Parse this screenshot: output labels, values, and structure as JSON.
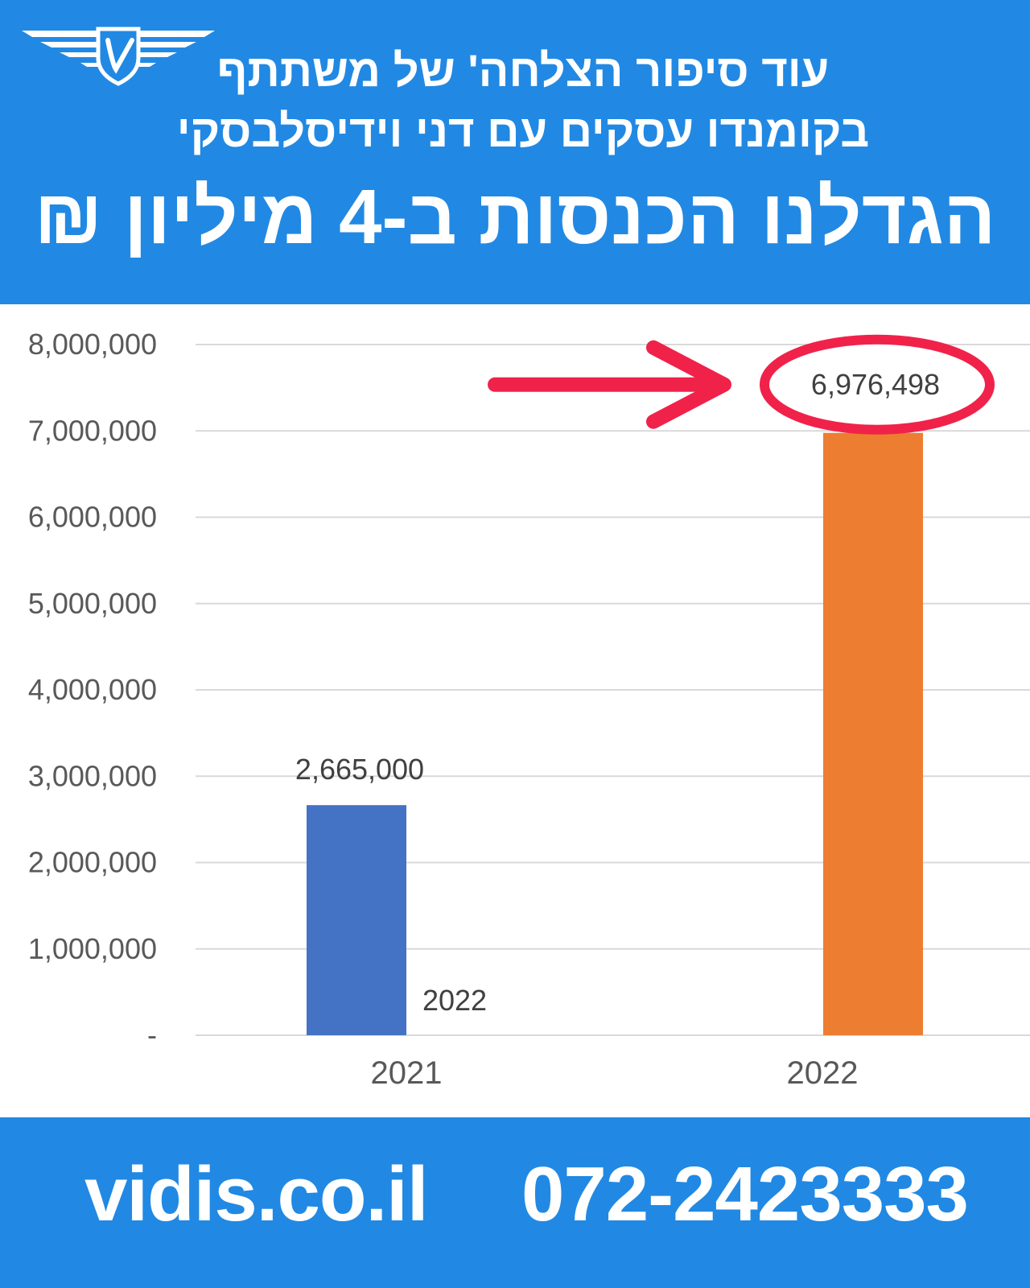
{
  "header": {
    "subtitle_line1": "עוד סיפור הצלחה' של משתתף",
    "subtitle_line2": "בקומנדו עסקים עם דני וידיסלבסקי",
    "headline": "הגדלנו הכנסות ב-4 מיליון ₪",
    "background_color": "#2189e3",
    "logo_icon": "winged-shield-logo"
  },
  "chart_data": {
    "type": "bar",
    "categories": [
      "2021",
      "2022"
    ],
    "values": [
      2665000,
      6976498
    ],
    "data_labels": [
      "2,665,000",
      "6,976,498"
    ],
    "bar_colors": [
      "#4472c4",
      "#ed7d31"
    ],
    "ylim": [
      0,
      8000000
    ],
    "y_ticks": [
      0,
      1000000,
      2000000,
      3000000,
      4000000,
      5000000,
      6000000,
      7000000,
      8000000
    ],
    "y_tick_labels": [
      "-",
      "1,000,000",
      "2,000,000",
      "3,000,000",
      "4,000,000",
      "5,000,000",
      "6,000,000",
      "7,000,000",
      "8,000,000"
    ],
    "grid": true,
    "annotations": [
      {
        "text": "2022",
        "description": "stray label beside the 2021 bar"
      },
      {
        "text": "6,976,498",
        "description": "red circle and red arrow highlighting the 2022 value",
        "color": "#f0224a"
      }
    ]
  },
  "footer": {
    "website": "vidis.co.il",
    "phone": "072-2423333",
    "background_color": "#2189e3"
  }
}
